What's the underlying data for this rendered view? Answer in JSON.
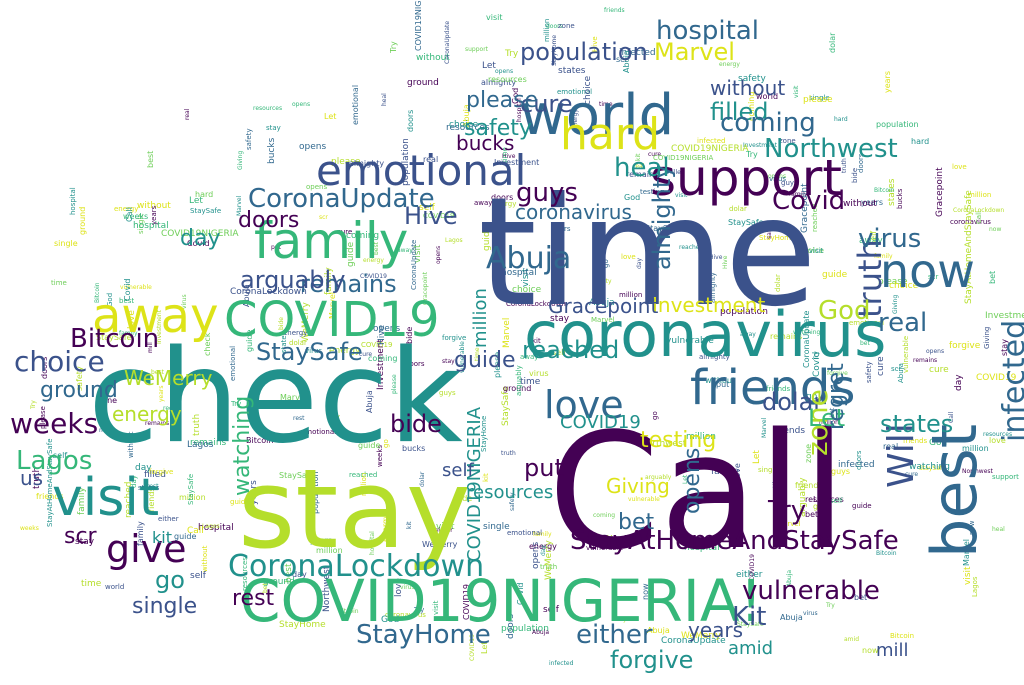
{
  "word_cloud": {
    "palette": {
      "dark_purple": "#440154",
      "indigo": "#3b528b",
      "blue_teal": "#31688e",
      "teal": "#21918c",
      "green": "#35b779",
      "lime": "#b5de2b",
      "yellow": "#dde318",
      "light_green": "#6ece58"
    },
    "words": [
      {
        "text": "time",
        "color": "#3b528b"
      },
      {
        "text": "Call",
        "color": "#440154"
      },
      {
        "text": "check",
        "color": "#21918c"
      },
      {
        "text": "stay",
        "color": "#b5de2b"
      },
      {
        "text": "coronavirus",
        "color": "#21918c"
      },
      {
        "text": "COVID19NIGERIA!",
        "color": "#35b779"
      },
      {
        "text": "world",
        "color": "#31688e"
      },
      {
        "text": "support",
        "color": "#440154"
      },
      {
        "text": "friends",
        "color": "#31688e"
      },
      {
        "text": "family",
        "color": "#35b779"
      },
      {
        "text": "emotional",
        "color": "#3b528b"
      },
      {
        "text": "away",
        "color": "#dde318"
      },
      {
        "text": "visit",
        "color": "#21918c"
      },
      {
        "text": "COVID19",
        "color": "#35b779"
      },
      {
        "text": "hard",
        "color": "#dde318"
      },
      {
        "text": "now",
        "color": "#31688e"
      },
      {
        "text": "best",
        "color": "#31688e"
      },
      {
        "text": "love",
        "color": "#31688e"
      },
      {
        "text": "give",
        "color": "#440154"
      },
      {
        "text": "Will",
        "color": "#3b528b"
      },
      {
        "text": "infected",
        "color": "#31688e"
      },
      {
        "text": "CoronaLockdown",
        "color": "#21918c"
      },
      {
        "text": "StayAtHomeAndStaySafe",
        "color": "#440154"
      },
      {
        "text": "vulnerable",
        "color": "#440154"
      },
      {
        "text": "StayHome",
        "color": "#31688e"
      },
      {
        "text": "CoronaUpdate",
        "color": "#31688e"
      },
      {
        "text": "hospital",
        "color": "#31688e"
      },
      {
        "text": "population",
        "color": "#3b528b"
      },
      {
        "text": "Marvel",
        "color": "#dde318"
      },
      {
        "text": "Northwest",
        "color": "#21918c"
      },
      {
        "text": "Abuja",
        "color": "#31688e"
      },
      {
        "text": "choice",
        "color": "#3b528b"
      },
      {
        "text": "Bitcoin",
        "color": "#440154"
      },
      {
        "text": "Lagos",
        "color": "#35b779"
      },
      {
        "text": "weeks",
        "color": "#440154"
      },
      {
        "text": "StaySafe",
        "color": "#31688e"
      },
      {
        "text": "truth",
        "color": "#3b528b"
      },
      {
        "text": "almighty",
        "color": "#31688e"
      },
      {
        "text": "virus",
        "color": "#31688e"
      },
      {
        "text": "Hive",
        "color": "#3b528b"
      },
      {
        "text": "God",
        "color": "#b5de2b"
      },
      {
        "text": "real",
        "color": "#31688e"
      },
      {
        "text": "remains",
        "color": "#31688e"
      },
      {
        "text": "arguably",
        "color": "#3b528b"
      },
      {
        "text": "doors",
        "color": "#440154"
      },
      {
        "text": "Covid",
        "color": "#440154"
      },
      {
        "text": "guys",
        "color": "#440154"
      },
      {
        "text": "heal",
        "color": "#21918c"
      },
      {
        "text": "filled",
        "color": "#21918c"
      },
      {
        "text": "coming",
        "color": "#31688e"
      },
      {
        "text": "safety",
        "color": "#21918c"
      },
      {
        "text": "bucks",
        "color": "#440154"
      },
      {
        "text": "cure",
        "color": "#3b528b"
      },
      {
        "text": "without",
        "color": "#3b528b"
      },
      {
        "text": "please",
        "color": "#31688e"
      },
      {
        "text": "coronavirus",
        "color": "#31688e"
      },
      {
        "text": "day",
        "color": "#21918c"
      },
      {
        "text": "guide",
        "color": "#3b528b"
      },
      {
        "text": "reached",
        "color": "#21918c"
      },
      {
        "text": "Investment",
        "color": "#dde318"
      },
      {
        "text": "Gracepoint",
        "color": "#3b528b"
      },
      {
        "text": "ground",
        "color": "#31688e"
      },
      {
        "text": "energy",
        "color": "#b5de2b"
      },
      {
        "text": "bide",
        "color": "#440154"
      },
      {
        "text": "testing",
        "color": "#dde318"
      },
      {
        "text": "put",
        "color": "#440154"
      },
      {
        "text": "states",
        "color": "#21918c"
      },
      {
        "text": "dolar",
        "color": "#3b528b"
      },
      {
        "text": "Try",
        "color": "#440154"
      },
      {
        "text": "Kit",
        "color": "#3b528b"
      },
      {
        "text": "either",
        "color": "#31688e"
      },
      {
        "text": "years",
        "color": "#3b528b"
      },
      {
        "text": "forgive",
        "color": "#21918c"
      },
      {
        "text": "single",
        "color": "#3b528b"
      },
      {
        "text": "rest",
        "color": "#440154"
      },
      {
        "text": "go",
        "color": "#21918c"
      },
      {
        "text": "opens",
        "color": "#31688e"
      },
      {
        "text": "zone",
        "color": "#b5de2b"
      },
      {
        "text": "Let",
        "color": "#35b779"
      },
      {
        "text": "regret",
        "color": "#31688e"
      },
      {
        "text": "resources",
        "color": "#21918c"
      },
      {
        "text": "watching",
        "color": "#35b779"
      },
      {
        "text": "WeMerry",
        "color": "#b5de2b"
      },
      {
        "text": "us",
        "color": "#3b528b"
      },
      {
        "text": "scr",
        "color": "#440154"
      },
      {
        "text": "Giving",
        "color": "#dde318"
      },
      {
        "text": "bet",
        "color": "#31688e"
      },
      {
        "text": "million",
        "color": "#21918c"
      },
      {
        "text": "amid",
        "color": "#21918c"
      },
      {
        "text": "COVID19",
        "color": "#21918c"
      },
      {
        "text": "COVID19NIGERIA",
        "color": "#21918c"
      },
      {
        "text": "self",
        "color": "#3b528b"
      },
      {
        "text": "mill",
        "color": "#3b528b"
      },
      {
        "text": "kit",
        "color": "#21918c"
      }
    ],
    "small_words": [
      "opens",
      "Investment",
      "StaySafe",
      "regret",
      "Call",
      "energy",
      "put",
      "Abuja",
      "guys",
      "years",
      "please",
      "Marvel",
      "Try",
      "doors",
      "visit",
      "stay",
      "friends",
      "Northwest",
      "filled",
      "world",
      "Lagos",
      "remains",
      "truth",
      "Hive",
      "coronavirus",
      "safety",
      "WeMerry",
      "check",
      "zone",
      "bide",
      "single",
      "heal",
      "Giving",
      "Bitcoin",
      "Gracepoint",
      "amid",
      "dolar",
      "weeks",
      "forgive",
      "testing",
      "million",
      "resources",
      "ground",
      "choice",
      "hospital",
      "best",
      "self",
      "rest",
      "cure",
      "reached",
      "guide",
      "states",
      "population",
      "emotional",
      "love",
      "infected",
      "StayHome",
      "COVID19",
      "family",
      "time",
      "support",
      "without",
      "coming",
      "virus",
      "almighty",
      "bucks",
      "God",
      "arguably",
      "real",
      "kit",
      "bet",
      "us",
      "scr",
      "go",
      "day",
      "either",
      "watching",
      "CoronaLockdown",
      "CoronaUpdate",
      "vulnerable",
      "Let",
      "now",
      "hard",
      "away",
      "Covid",
      "mill",
      "COVID19NIGERIA",
      "StayAtHomeAndStaySafe"
    ]
  }
}
